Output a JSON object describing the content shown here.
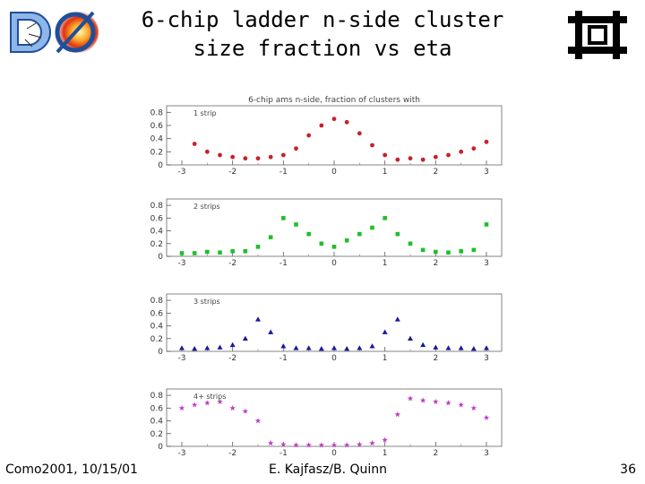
{
  "slide": {
    "title_line1": "6-chip ladder n-side cluster",
    "title_line2": "size fraction vs eta",
    "footer_left": "Como2001, 10/15/01",
    "footer_center": "E. Kajfasz/B. Quinn",
    "page_number": "36"
  },
  "chart_data": [
    {
      "type": "scatter",
      "title": "6-chip ams n-side, fraction of clusters with",
      "panel_label": "1 strip",
      "color": "#c8202a",
      "marker": "circle",
      "xlim": [
        -3.3,
        3.3
      ],
      "ylim": [
        0,
        0.9
      ],
      "xticks": [
        "-3",
        "-2",
        "-1",
        "0",
        "1",
        "2",
        "3"
      ],
      "yticks": [
        "0",
        "0.2",
        "0.4",
        "0.6",
        "0.8"
      ],
      "x": [
        -2.75,
        -2.5,
        -2.25,
        -2.0,
        -1.75,
        -1.5,
        -1.25,
        -1.0,
        -0.75,
        -0.5,
        -0.25,
        0.0,
        0.25,
        0.5,
        0.75,
        1.0,
        1.25,
        1.5,
        1.75,
        2.0,
        2.25,
        2.5,
        2.75,
        3.0
      ],
      "y": [
        0.32,
        0.2,
        0.15,
        0.12,
        0.1,
        0.1,
        0.12,
        0.15,
        0.25,
        0.45,
        0.6,
        0.7,
        0.65,
        0.48,
        0.3,
        0.15,
        0.08,
        0.1,
        0.08,
        0.12,
        0.15,
        0.2,
        0.25,
        0.35
      ]
    },
    {
      "type": "scatter",
      "title": "",
      "panel_label": "2 strips",
      "color": "#1fbf2a",
      "marker": "square",
      "xlim": [
        -3.3,
        3.3
      ],
      "ylim": [
        0,
        0.9
      ],
      "xticks": [
        "-3",
        "-2",
        "-1",
        "0",
        "1",
        "2",
        "3"
      ],
      "yticks": [
        "0",
        "0.2",
        "0.4",
        "0.6",
        "0.8"
      ],
      "x": [
        -3.0,
        -2.75,
        -2.5,
        -2.25,
        -2.0,
        -1.75,
        -1.5,
        -1.25,
        -1.0,
        -0.75,
        -0.5,
        -0.25,
        0.0,
        0.25,
        0.5,
        0.75,
        1.0,
        1.25,
        1.5,
        1.75,
        2.0,
        2.25,
        2.5,
        2.75,
        3.0
      ],
      "y": [
        0.05,
        0.05,
        0.07,
        0.06,
        0.08,
        0.08,
        0.15,
        0.3,
        0.6,
        0.5,
        0.35,
        0.2,
        0.15,
        0.25,
        0.35,
        0.45,
        0.6,
        0.35,
        0.2,
        0.1,
        0.07,
        0.06,
        0.08,
        0.1,
        0.5
      ]
    },
    {
      "type": "scatter",
      "title": "",
      "panel_label": "3 strips",
      "color": "#1a1a9a",
      "marker": "triangle",
      "xlim": [
        -3.3,
        3.3
      ],
      "ylim": [
        0,
        0.9
      ],
      "xticks": [
        "-3",
        "-2",
        "-1",
        "0",
        "1",
        "2",
        "3"
      ],
      "yticks": [
        "0",
        "0.2",
        "0.4",
        "0.6",
        "0.8"
      ],
      "x": [
        -3.0,
        -2.75,
        -2.5,
        -2.25,
        -2.0,
        -1.75,
        -1.5,
        -1.25,
        -1.0,
        -0.75,
        -0.5,
        -0.25,
        0.0,
        0.25,
        0.5,
        0.75,
        1.0,
        1.25,
        1.5,
        1.75,
        2.0,
        2.25,
        2.5,
        2.75,
        3.0
      ],
      "y": [
        0.05,
        0.04,
        0.05,
        0.06,
        0.1,
        0.2,
        0.5,
        0.3,
        0.08,
        0.05,
        0.05,
        0.04,
        0.05,
        0.04,
        0.05,
        0.08,
        0.3,
        0.5,
        0.2,
        0.1,
        0.06,
        0.05,
        0.05,
        0.04,
        0.05
      ]
    },
    {
      "type": "scatter",
      "title": "",
      "panel_label": "4+ strips",
      "color": "#c03cc0",
      "marker": "star",
      "xlim": [
        -3.3,
        3.3
      ],
      "ylim": [
        0,
        0.9
      ],
      "xticks": [
        "-3",
        "-2",
        "-1",
        "0",
        "1",
        "2",
        "3"
      ],
      "yticks": [
        "0",
        "0.2",
        "0.4",
        "0.6",
        "0.8"
      ],
      "x": [
        -3.0,
        -2.75,
        -2.5,
        -2.25,
        -2.0,
        -1.75,
        -1.5,
        -1.25,
        -1.0,
        -0.75,
        -0.5,
        -0.25,
        0.0,
        0.25,
        0.5,
        0.75,
        1.0,
        1.25,
        1.5,
        1.75,
        2.0,
        2.25,
        2.5,
        2.75,
        3.0
      ],
      "y": [
        0.6,
        0.65,
        0.68,
        0.7,
        0.6,
        0.55,
        0.4,
        0.05,
        0.03,
        0.02,
        0.02,
        0.02,
        0.02,
        0.02,
        0.03,
        0.05,
        0.1,
        0.5,
        0.75,
        0.72,
        0.7,
        0.68,
        0.65,
        0.6,
        0.45
      ]
    }
  ]
}
